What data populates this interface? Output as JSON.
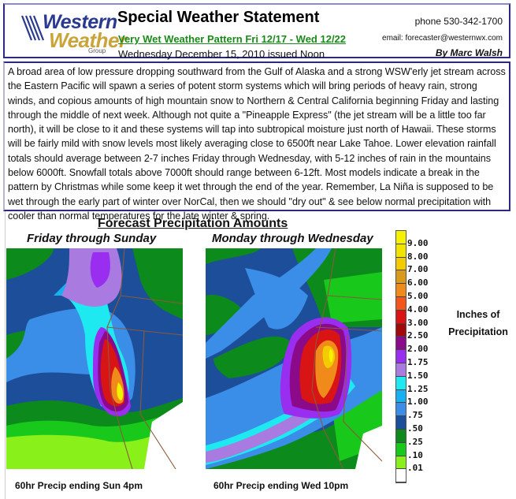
{
  "header": {
    "logo": {
      "line1": "Western",
      "line2": "Weather",
      "line3": "Group"
    },
    "title": "Special Weather Statement",
    "subtitle": "Very Wet Weather Pattern Fri 12/17 - Wed 12/22",
    "issued": "Wednesday December 15, 2010 issued Noon",
    "phone": "phone 530-342-1700",
    "email": "email: forecaster@westernwx.com",
    "author": "By Marc Walsh"
  },
  "body": {
    "text": "A broad area of low pressure dropping southward from the Gulf of Alaska and a strong WSW'erly jet stream across the Eastern Pacific will spawn a series of potent storm systems which will bring periods of heavy rain, strong winds, and copious amounts of high mountain snow to Northern & Central California beginning Friday and lasting through the middle of next week.  Although not quite a \"Pineapple Express\" (the jet stream will be a little too far north), it will be close to it and these systems will tap into subtropical moisture just north of Hawaii.  These storms will be fairly mild with snow levels most likely averaging close to 6500ft near Lake Tahoe.  Lower elevation rainfall totals should average between 2-7 inches Friday through Wednesday, with 5-12 inches of rain in the mountains below 6000ft. Snowfall totals above 7000ft should range between 6-12ft. Most models indicate a break in the pattern by Christmas while some keep it wet through the end of the year.  Remember, La Niña is supposed to be wet through the early part of winter over NorCal, then we should \"dry out\" & see below normal precipitation with cooler than normal temperatures for the late winter & spring."
  },
  "forecast": {
    "section_title": "Forecast Precipitation Amounts",
    "maps": [
      {
        "label": "Friday through Sunday",
        "caption": "60hr Precip ending Sun 4pm"
      },
      {
        "label": "Monday through Wednesday",
        "caption": "60hr Precip ending Wed 10pm"
      }
    ],
    "legend": {
      "title_line1": "Inches of",
      "title_line2": "Precipitation",
      "units": "inches",
      "bins": [
        {
          "label": "9.00",
          "color": "#f5f200"
        },
        {
          "label": "8.00",
          "color": "#f0e400"
        },
        {
          "label": "7.00",
          "color": "#f2cc00"
        },
        {
          "label": "6.00",
          "color": "#d99a1c"
        },
        {
          "label": "5.00",
          "color": "#f08a1a"
        },
        {
          "label": "4.00",
          "color": "#f2561a"
        },
        {
          "label": "3.00",
          "color": "#d81414"
        },
        {
          "label": "2.50",
          "color": "#a00a0a"
        },
        {
          "label": "2.00",
          "color": "#8a0a8a"
        },
        {
          "label": "1.75",
          "color": "#9a2ef0"
        },
        {
          "label": "1.50",
          "color": "#a97ae0"
        },
        {
          "label": "1.25",
          "color": "#1ee8f0"
        },
        {
          "label": "1.00",
          "color": "#18b0f0"
        },
        {
          "label": ".75",
          "color": "#3a8ee8"
        },
        {
          "label": ".50",
          "color": "#1c4e9a"
        },
        {
          "label": ".25",
          "color": "#0c8a1c"
        },
        {
          "label": ".10",
          "color": "#18c81a"
        },
        {
          "label": ".01",
          "color": "#8af01a"
        },
        {
          "label": "",
          "color": "#ffffff"
        }
      ]
    }
  }
}
